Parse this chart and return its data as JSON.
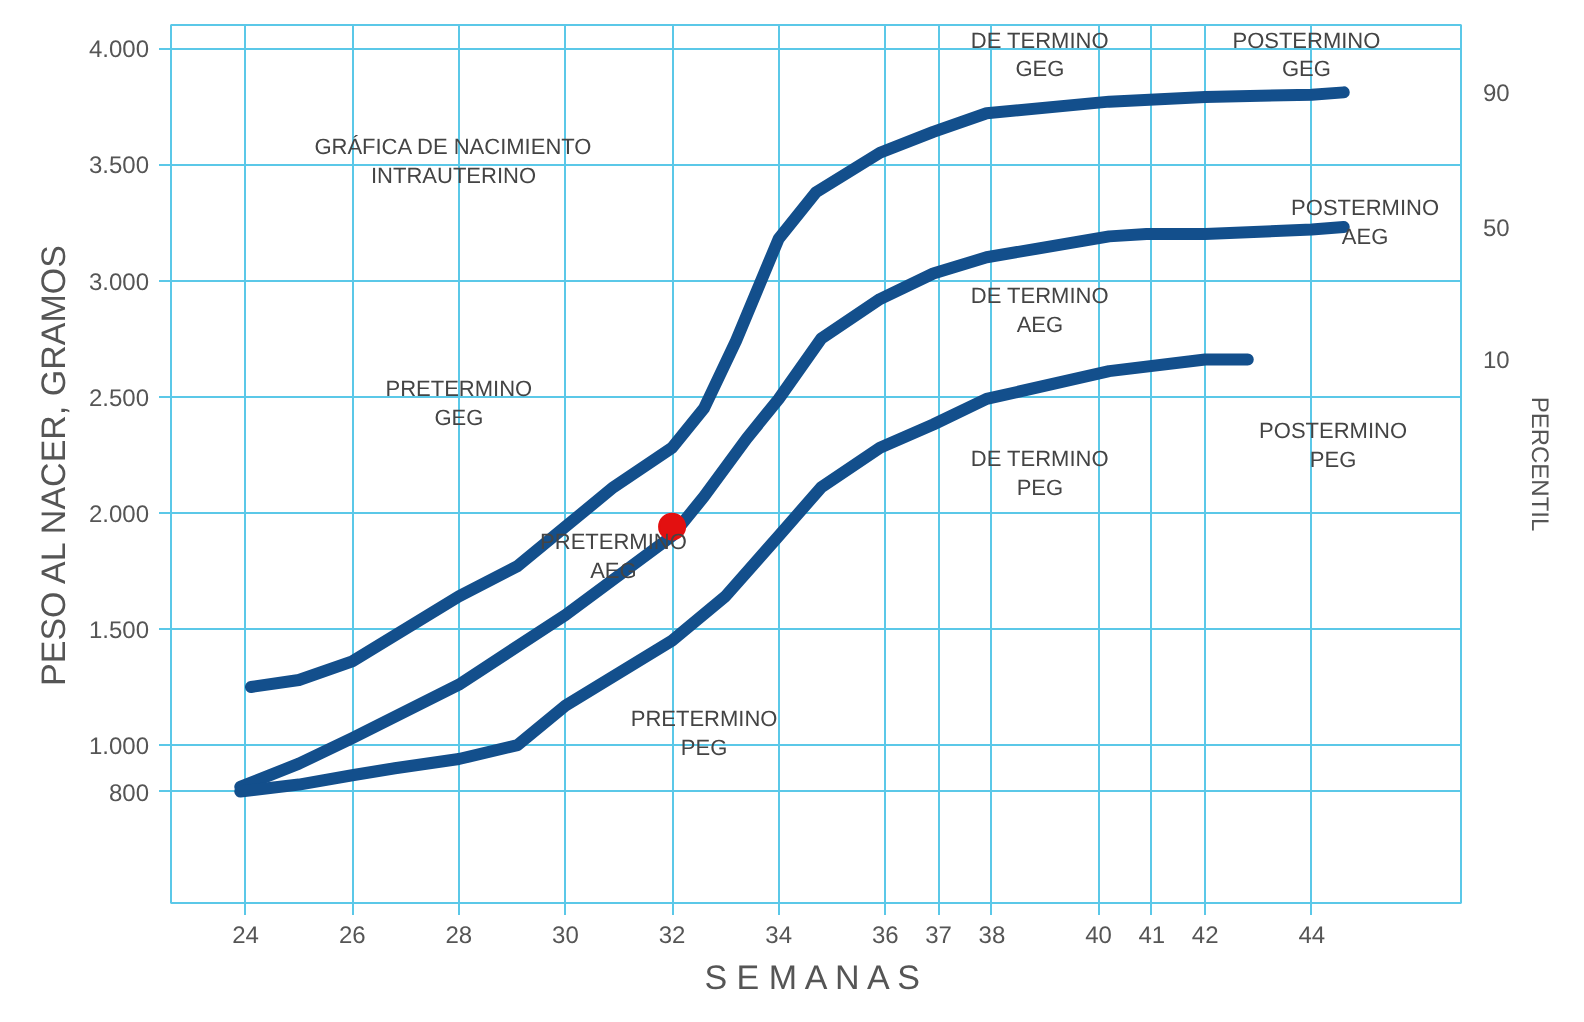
{
  "chart_data": {
    "type": "line",
    "xlabel": "S E M A N A S",
    "ylabel": "PESO AL NACER, GRAMOS",
    "y2label": "PERCENTIL",
    "xlim": [
      22.6,
      46.8
    ],
    "ylim": [
      320,
      4100
    ],
    "xticks": [
      24,
      26,
      28,
      30,
      32,
      34,
      36,
      37,
      38,
      40,
      41,
      42,
      44
    ],
    "yticks": [
      {
        "value": 800,
        "label": "800"
      },
      {
        "value": 1000,
        "label": "1.000"
      },
      {
        "value": 1500,
        "label": "1.500"
      },
      {
        "value": 2000,
        "label": "2.000"
      },
      {
        "value": 2500,
        "label": "2.500"
      },
      {
        "value": 3000,
        "label": "3.000"
      },
      {
        "value": 3500,
        "label": "3.500"
      },
      {
        "value": 4000,
        "label": "4.000"
      }
    ],
    "grid": true,
    "marker": "none",
    "line_style": "solid",
    "series": [
      {
        "name": "90",
        "color": "#134f8c",
        "x": [
          24.1,
          25,
          26,
          28,
          29.1,
          30,
          30.9,
          32,
          32.6,
          33.2,
          34,
          34.7,
          35.9,
          36.9,
          37.9,
          40.2,
          42,
          44,
          44.6
        ],
        "values": [
          1250,
          1280,
          1360,
          1640,
          1770,
          1940,
          2110,
          2280,
          2450,
          2740,
          3180,
          3380,
          3550,
          3640,
          3720,
          3770,
          3790,
          3800,
          3810
        ]
      },
      {
        "name": "50",
        "color": "#134f8c",
        "x": [
          23.9,
          25,
          26,
          28,
          30,
          32,
          32.6,
          33.4,
          34,
          34.8,
          35.9,
          36.9,
          37.9,
          40.2,
          40.9,
          42,
          44,
          44.6
        ],
        "values": [
          820,
          920,
          1030,
          1260,
          1560,
          1900,
          2070,
          2320,
          2490,
          2750,
          2920,
          3030,
          3100,
          3190,
          3200,
          3200,
          3220,
          3230
        ]
      },
      {
        "name": "10",
        "color": "#134f8c",
        "x": [
          23.9,
          25,
          26,
          26.8,
          28,
          29.1,
          30,
          32,
          33,
          34,
          34.8,
          35.9,
          36.9,
          37.9,
          40.2,
          42,
          42.8
        ],
        "values": [
          800,
          830,
          870,
          900,
          940,
          1000,
          1170,
          1450,
          1640,
          1900,
          2110,
          2280,
          2380,
          2490,
          2610,
          2660,
          2660
        ]
      },
      {
        "type": "scatter",
        "marker": "circle",
        "color": "#e31010",
        "x": [
          32
        ],
        "values": [
          1940
        ]
      }
    ],
    "annotations": [
      "GRÁFICA DE NACIMIENTO\nINTRAUTERINO",
      "PRETERMINO\nGEG",
      "PRETERMINO\nAEG",
      "PRETERMINO\nPEG",
      "DE TERMINO\nGEG",
      "DE TERMINO\nAEG",
      "DE TERMINO\nPEG",
      "POSTERMINO\nGEG",
      "POSTERMINO\nAEG",
      "POSTERMINO\nPEG"
    ]
  }
}
